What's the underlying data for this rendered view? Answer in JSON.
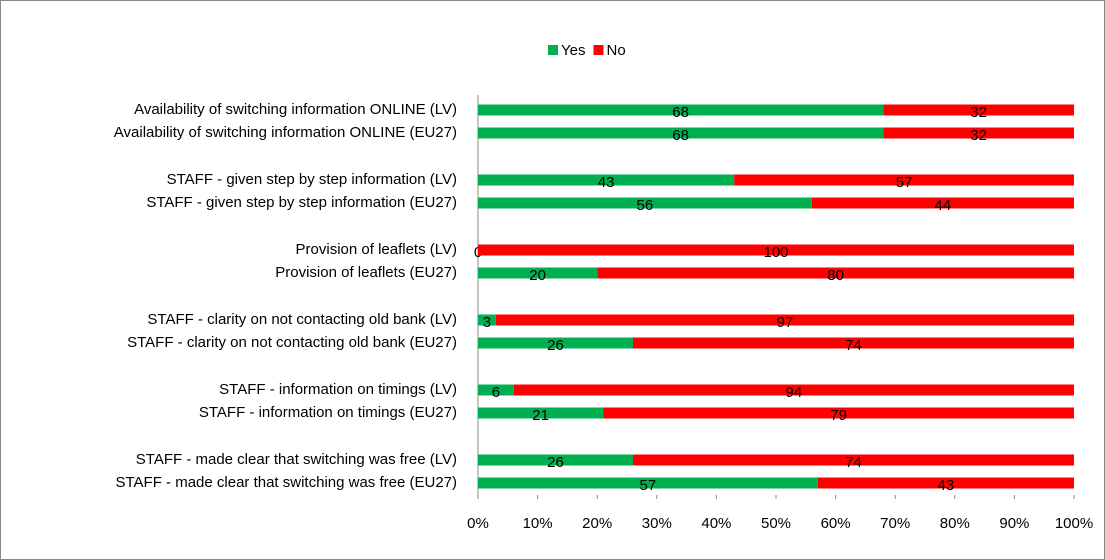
{
  "chart_data": {
    "type": "stacked_barh",
    "categories": [
      "Availability of switching information ONLINE (LV)",
      "Availability of switching information ONLINE (EU27)",
      "STAFF - given step by step information (LV)",
      "STAFF - given step by step information (EU27)",
      "Provision of leaflets (LV)",
      "Provision of leaflets (EU27)",
      "STAFF - clarity on not contacting old bank (LV)",
      "STAFF - clarity on not contacting old bank (EU27)",
      "STAFF - information on timings (LV)",
      "STAFF - information on timings (EU27)",
      "STAFF - made clear that switching was free (LV)",
      "STAFF - made clear that switching was free (EU27)"
    ],
    "series": [
      {
        "name": "Yes",
        "color": "#00b050",
        "values": [
          68,
          68,
          43,
          56,
          0,
          20,
          3,
          26,
          6,
          21,
          26,
          57
        ]
      },
      {
        "name": "No",
        "color": "#ff0000",
        "values": [
          32,
          32,
          57,
          44,
          100,
          80,
          97,
          74,
          94,
          79,
          74,
          43
        ]
      }
    ],
    "xlim": [
      0,
      100
    ],
    "xticks": [
      {
        "value": 0,
        "label": "0%"
      },
      {
        "value": 10,
        "label": "10%"
      },
      {
        "value": 20,
        "label": "20%"
      },
      {
        "value": 30,
        "label": "30%"
      },
      {
        "value": 40,
        "label": "40%"
      },
      {
        "value": 50,
        "label": "50%"
      },
      {
        "value": 60,
        "label": "60%"
      },
      {
        "value": 70,
        "label": "70%"
      },
      {
        "value": 80,
        "label": "80%"
      },
      {
        "value": 90,
        "label": "90%"
      },
      {
        "value": 100,
        "label": "100%"
      }
    ],
    "legend": "top"
  }
}
